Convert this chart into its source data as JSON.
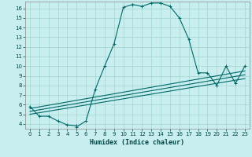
{
  "xlabel": "Humidex (Indice chaleur)",
  "bg_color": "#c8eef0",
  "line_color": "#006868",
  "grid_color": "#a8d8d0",
  "xlim": [
    -0.5,
    23.5
  ],
  "ylim": [
    3.5,
    16.7
  ],
  "xticks": [
    0,
    1,
    2,
    3,
    4,
    5,
    6,
    7,
    8,
    9,
    10,
    11,
    12,
    13,
    14,
    15,
    16,
    17,
    18,
    19,
    20,
    21,
    22,
    23
  ],
  "yticks": [
    4,
    5,
    6,
    7,
    8,
    9,
    10,
    11,
    12,
    13,
    14,
    15,
    16
  ],
  "curve_x": [
    0,
    1,
    2,
    3,
    4,
    5,
    5,
    6,
    7,
    8,
    9,
    10,
    11,
    12,
    13,
    14,
    15,
    16,
    17,
    18,
    19,
    20,
    21,
    22,
    23
  ],
  "curve_y": [
    5.8,
    4.8,
    4.8,
    4.3,
    3.9,
    3.8,
    3.7,
    4.3,
    7.6,
    10.0,
    12.3,
    16.1,
    16.4,
    16.2,
    16.55,
    16.55,
    16.2,
    15.0,
    12.8,
    9.3,
    9.3,
    8.0,
    10.0,
    8.2,
    10.0
  ],
  "line1_x": [
    0,
    23
  ],
  "line1_y": [
    5.6,
    9.5
  ],
  "line2_x": [
    0,
    23
  ],
  "line2_y": [
    5.3,
    9.1
  ],
  "line3_x": [
    0,
    23
  ],
  "line3_y": [
    5.0,
    8.7
  ]
}
